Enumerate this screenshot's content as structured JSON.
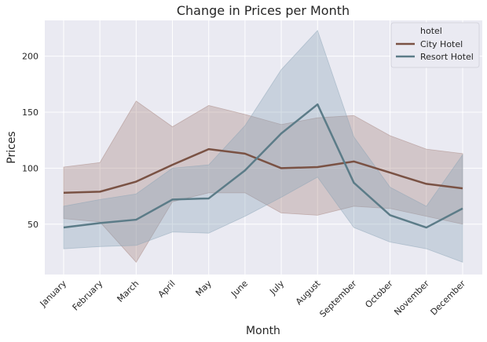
{
  "chart_data": {
    "type": "line",
    "title": "Change in Prices per Month",
    "xlabel": "Month",
    "ylabel": "Prices",
    "categories": [
      "January",
      "February",
      "March",
      "April",
      "May",
      "June",
      "July",
      "August",
      "September",
      "October",
      "November",
      "December"
    ],
    "yticks": [
      50,
      100,
      150,
      200
    ],
    "ylim": [
      5,
      232
    ],
    "grid": true,
    "legend": {
      "title": "hotel",
      "placement": "top-right"
    },
    "series": [
      {
        "name": "City Hotel",
        "color": "#7a5244",
        "band_color": "#a6847d",
        "values": [
          78,
          79,
          88,
          103,
          117,
          113,
          100,
          101,
          106,
          96,
          86,
          82
        ],
        "upper": [
          101,
          105,
          160,
          137,
          156,
          148,
          139,
          145,
          147,
          129,
          117,
          113
        ],
        "lower": [
          55,
          52,
          16,
          70,
          78,
          78,
          60,
          58,
          66,
          64,
          57,
          50
        ]
      },
      {
        "name": "Resort Hotel",
        "color": "#5c7c88",
        "band_color": "#8aa3b6",
        "values": [
          47,
          51,
          54,
          72,
          73,
          98,
          131,
          157,
          87,
          58,
          47,
          64
        ],
        "upper": [
          66,
          72,
          77,
          100,
          103,
          138,
          188,
          223,
          128,
          83,
          66,
          112
        ],
        "lower": [
          28,
          30,
          31,
          43,
          42,
          57,
          74,
          92,
          47,
          34,
          28,
          16
        ]
      }
    ]
  }
}
